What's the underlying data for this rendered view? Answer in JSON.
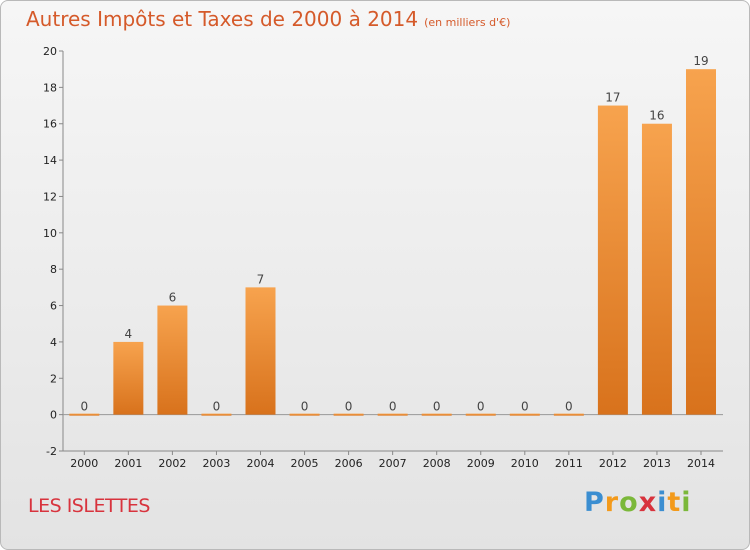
{
  "title": "Autres Impôts et Taxes de 2000 à 2014",
  "unit": "(en milliers d'€)",
  "commune": "LES ISLETTES",
  "logo": {
    "letters": [
      "P",
      "r",
      "o",
      "x",
      "i",
      "t",
      "i"
    ],
    "colors": [
      "#3b8ed1",
      "#f39a1b",
      "#7bb83a",
      "#d8333d",
      "#3b8ed1",
      "#f39a1b",
      "#7bb83a"
    ]
  },
  "colors": {
    "bar_top": "#f7a34e",
    "bar_bottom": "#d8721c",
    "title": "#d55a2a",
    "commune": "#d8333d"
  },
  "chart_data": {
    "type": "bar",
    "categories": [
      "2000",
      "2001",
      "2002",
      "2003",
      "2004",
      "2005",
      "2006",
      "2007",
      "2008",
      "2009",
      "2010",
      "2011",
      "2012",
      "2013",
      "2014"
    ],
    "values": [
      0,
      4,
      6,
      0,
      7,
      0,
      0,
      0,
      0,
      0,
      0,
      0,
      17,
      16,
      19
    ],
    "ylim": [
      -2,
      20
    ],
    "yticks": [
      -2,
      0,
      2,
      4,
      6,
      8,
      10,
      12,
      14,
      16,
      18,
      20
    ],
    "grid": false,
    "xlabel": "",
    "ylabel": ""
  }
}
